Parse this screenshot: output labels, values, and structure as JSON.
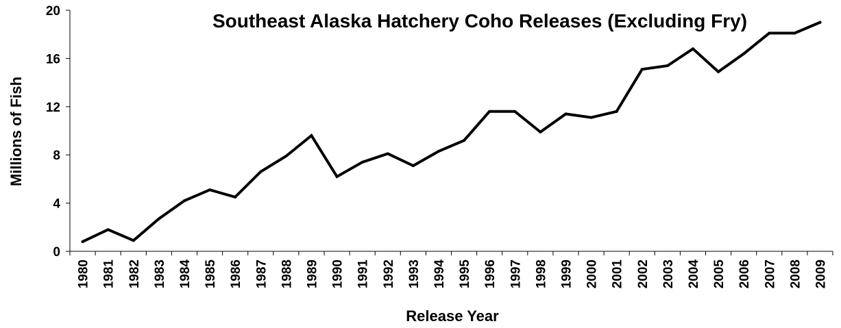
{
  "chart_data": {
    "type": "line",
    "title": "Southeast Alaska Hatchery Coho Releases (Excluding Fry)",
    "xlabel": "Release Year",
    "ylabel": "Millions of Fish",
    "x": [
      "1980",
      "1981",
      "1982",
      "1983",
      "1984",
      "1985",
      "1986",
      "1987",
      "1988",
      "1989",
      "1990",
      "1991",
      "1992",
      "1993",
      "1994",
      "1995",
      "1996",
      "1997",
      "1998",
      "1999",
      "2000",
      "2001",
      "2002",
      "2003",
      "2004",
      "2005",
      "2006",
      "2007",
      "2008",
      "2009"
    ],
    "series": [
      {
        "values": [
          0.8,
          1.8,
          0.9,
          2.7,
          4.2,
          5.1,
          4.5,
          6.6,
          7.9,
          9.6,
          6.2,
          7.4,
          8.1,
          7.1,
          8.3,
          9.2,
          11.6,
          11.6,
          9.9,
          11.4,
          11.1,
          11.6,
          15.1,
          15.4,
          16.8,
          14.9,
          16.4,
          18.1,
          18.1,
          19.0
        ]
      }
    ],
    "ylim": [
      0,
      20
    ],
    "yticks": [
      "0",
      "4",
      "8",
      "12",
      "16",
      "20"
    ],
    "grid": false,
    "legend": "none",
    "line_color": "#000000"
  }
}
